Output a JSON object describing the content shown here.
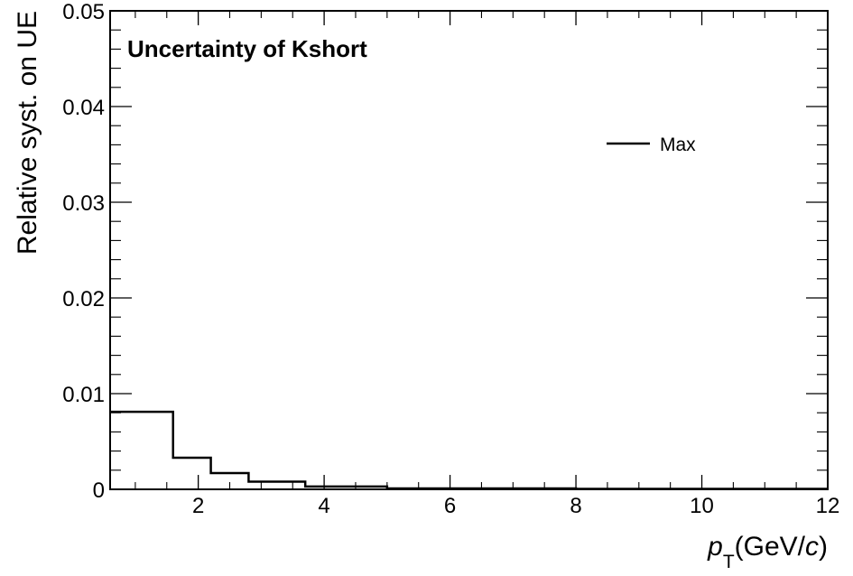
{
  "chart_data": {
    "type": "line",
    "title": "Uncertainty of Kshort",
    "xlabel": {
      "italic": "p",
      "subscript": "T",
      "rest": "(GeV/",
      "unit_italic": "c",
      "close": ")"
    },
    "ylabel": "Relative syst. on UE",
    "xlim": [
      0.6,
      12
    ],
    "ylim": [
      0,
      0.05
    ],
    "x_ticks": [
      2,
      4,
      6,
      8,
      10,
      12
    ],
    "x_tick_labels": [
      "2",
      "4",
      "6",
      "8",
      "10",
      "12"
    ],
    "y_ticks": [
      0,
      0.01,
      0.02,
      0.03,
      0.04,
      0.05
    ],
    "y_tick_labels": [
      "0",
      "0.01",
      "0.02",
      "0.03",
      "0.04",
      "0.05"
    ],
    "legend_placement": "top-right",
    "series": [
      {
        "name": "Max",
        "color": "#000000",
        "style": "step-histogram",
        "bin_edges": [
          0.6,
          1.6,
          2.2,
          2.8,
          3.7,
          5.0,
          8.0,
          12.0
        ],
        "values": [
          0.0081,
          0.0033,
          0.0017,
          0.0008,
          0.0003,
          0.0001,
          5e-05
        ]
      }
    ]
  }
}
